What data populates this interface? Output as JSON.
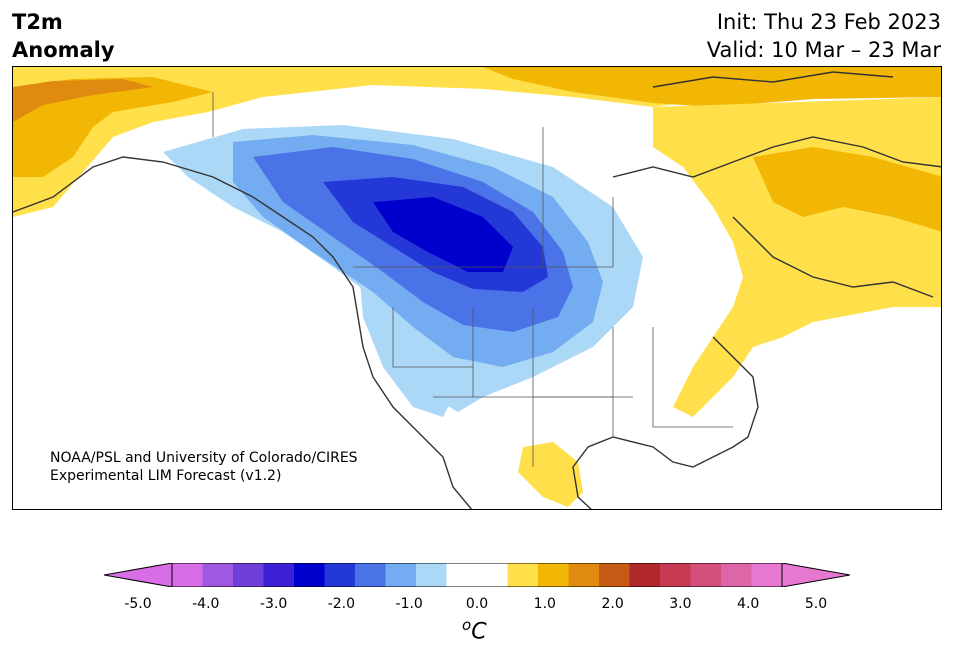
{
  "title": {
    "left_line1": "T2m",
    "left_line2": "Anomaly",
    "right_line1": "Init: Thu 23 Feb 2023",
    "right_line2": "Valid: 10 Mar – 23 Mar"
  },
  "credit": {
    "line1": "NOAA/PSL and University of Colorado/CIRES",
    "line2": "Experimental LIM Forecast (v1.2)"
  },
  "colorbar": {
    "unit_sup": "o",
    "unit": "C",
    "tick_labels": [
      "-5.0",
      "-4.0",
      "-3.0",
      "-2.0",
      "-1.0",
      "0.0",
      "1.0",
      "2.0",
      "3.0",
      "4.0",
      "5.0"
    ],
    "colors": [
      "#d86ee6",
      "#9f58e0",
      "#6e3fd9",
      "#3b20d6",
      "#0000cc",
      "#2438d8",
      "#4a73e8",
      "#74acf2",
      "#acd8f8",
      "#ffffff",
      "#ffffff",
      "#ffe04a",
      "#f2b705",
      "#e08a10",
      "#c75a15",
      "#b0282a",
      "#c83a54",
      "#d2507a",
      "#dc66a8",
      "#e678d2"
    ],
    "under_color": "#d86ee6",
    "over_color": "#e678d2"
  },
  "map": {
    "region": "North America",
    "variable": "2m temperature anomaly",
    "anomaly_features": [
      {
        "name": "cold-core",
        "level": "-3.0 to -3.5"
      },
      {
        "name": "warm-northeast",
        "level": "+1.0 to +1.5"
      },
      {
        "name": "warm-alaska-coast",
        "level": "+1.5 to +2.0"
      }
    ]
  }
}
